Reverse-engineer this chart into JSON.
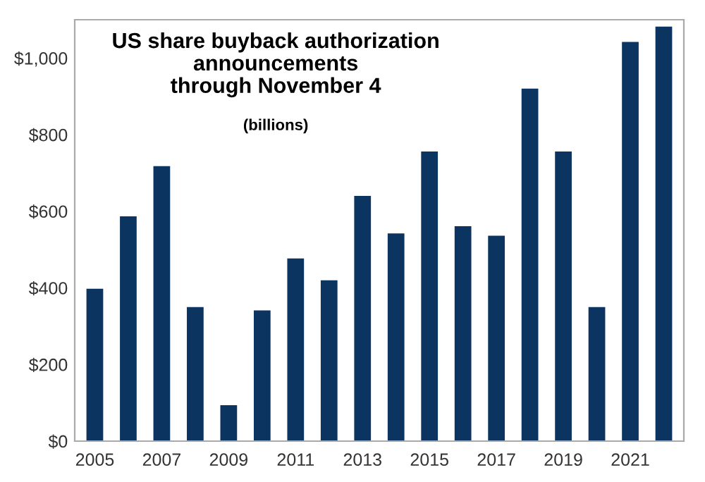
{
  "chart_data": {
    "type": "bar",
    "title": "US share buyback authorization\nannouncements\nthrough November 4",
    "subtitle": "(billions)",
    "categories": [
      "2005",
      null,
      "2007",
      null,
      "2009",
      null,
      "2011",
      null,
      "2013",
      null,
      "2015",
      null,
      "2017",
      null,
      "2019",
      null,
      "2021",
      null
    ],
    "values": [
      398,
      587,
      718,
      350,
      94,
      341,
      477,
      420,
      640,
      542,
      756,
      561,
      536,
      920,
      756,
      350,
      1042,
      1082
    ],
    "color": "#0b3560",
    "ylim": [
      0,
      1100
    ],
    "yticks": [
      {
        "value": 0,
        "label": "$0"
      },
      {
        "value": 200,
        "label": "$200"
      },
      {
        "value": 400,
        "label": "$400"
      },
      {
        "value": 600,
        "label": "$600"
      },
      {
        "value": 800,
        "label": "$800"
      },
      {
        "value": 1000,
        "label": "$1,000"
      }
    ],
    "grid": false
  }
}
